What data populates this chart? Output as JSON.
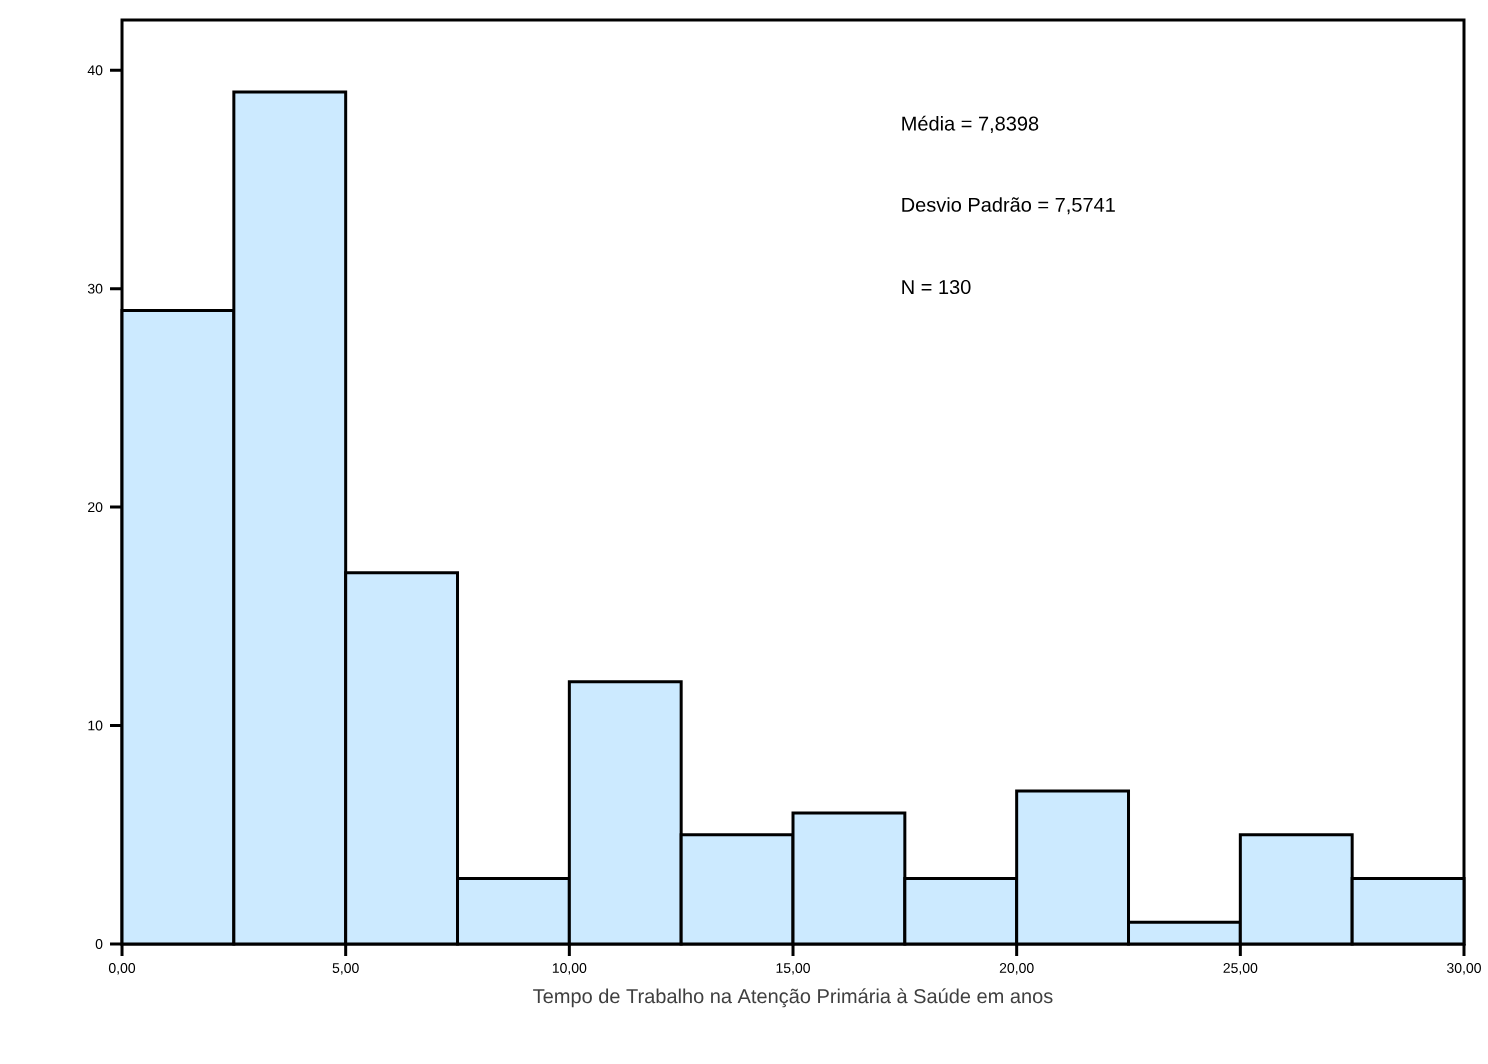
{
  "chart_data": {
    "type": "histogram",
    "bins": [
      0,
      2.5,
      5,
      7.5,
      10,
      12.5,
      15,
      17.5,
      20,
      22.5,
      25,
      27.5,
      30
    ],
    "values": [
      29,
      39,
      17,
      3,
      12,
      5,
      6,
      3,
      7,
      1,
      5,
      3
    ],
    "color": "#cceaff",
    "xlabel": "Tempo de Trabalho na Atenção Primária à Saúde em anos",
    "annotations": [
      "Média = 7,8398",
      "Desvio Padrão = 7,5741",
      "N = 130"
    ],
    "xlim": [
      0,
      30
    ],
    "ylim": [
      0,
      42.3
    ],
    "xticks": [
      {
        "value": 0,
        "label": "0,00"
      },
      {
        "value": 5,
        "label": "5,00"
      },
      {
        "value": 10,
        "label": "10,00"
      },
      {
        "value": 15,
        "label": "15,00"
      },
      {
        "value": 20,
        "label": "20,00"
      },
      {
        "value": 25,
        "label": "25,00"
      },
      {
        "value": 30,
        "label": "30,00"
      }
    ],
    "yticks": [
      0,
      10,
      20,
      30,
      40
    ],
    "grid": false
  }
}
